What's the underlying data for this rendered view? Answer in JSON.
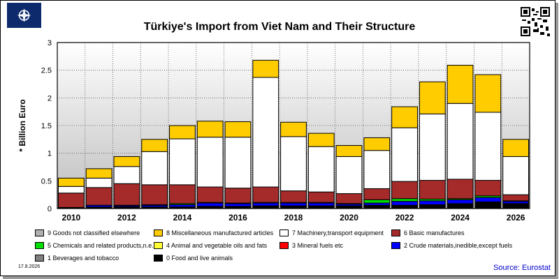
{
  "header": {
    "title": "Türkiye's Import from Viet Nam and Their Structure",
    "logo_icon": "nato-compass-icon",
    "qr_icon": "qr-code-icon"
  },
  "footer": {
    "date": "17.8.2026",
    "source": "Source: Eurostat"
  },
  "colors": {
    "c9": "#b0b0b0",
    "c8": "#ffcc00",
    "c7": "#ffffff",
    "c6": "#a52a2a",
    "c5": "#00dd00",
    "c4": "#ffff33",
    "c3": "#ff0000",
    "c2": "#0000ff",
    "c1": "#808080",
    "c0": "#000000"
  },
  "legend": [
    {
      "label": "9 Goods not classified elsewhere",
      "color": "#b0b0b0"
    },
    {
      "label": "8 Miscellaneous manufactured articles",
      "color": "#ffcc00"
    },
    {
      "label": "7 Machinery,transport equipment",
      "color": "#ffffff"
    },
    {
      "label": "6 Basic manufactures",
      "color": "#a52a2a"
    },
    {
      "label": "5 Chemicals and related products,n.e.s.",
      "color": "#00dd00"
    },
    {
      "label": "4 Animal and vegetable oils and fats",
      "color": "#ffff33"
    },
    {
      "label": "3 Mineral fuels etc",
      "color": "#ff0000"
    },
    {
      "label": "2 Crude materials,inedible,except fuels",
      "color": "#0000ff"
    },
    {
      "label": "1 Beverages and tobacco",
      "color": "#808080"
    },
    {
      "label": "0 Food and live animals",
      "color": "#000000"
    }
  ],
  "chart_data": {
    "type": "bar",
    "stacked": true,
    "ylabel": "* Billion Euro",
    "ylim": [
      0,
      3
    ],
    "yticks": [
      "0",
      "0.5",
      "1",
      "1.5",
      "2",
      "2.5",
      "3"
    ],
    "xtick_labels": [
      "2010",
      "2012",
      "2014",
      "2016",
      "2018",
      "2020",
      "2022",
      "2024",
      "2026"
    ],
    "categories": [
      "2010",
      "2011",
      "2012",
      "2013",
      "2014",
      "2015",
      "2016",
      "2017",
      "2018",
      "2019",
      "2020",
      "2021",
      "2022",
      "2023",
      "2024",
      "2025",
      "2026"
    ],
    "grid": true,
    "series": [
      {
        "name": "0 Food and live animals",
        "color": "#000000",
        "values": [
          0.01,
          0.03,
          0.03,
          0.03,
          0.03,
          0.04,
          0.04,
          0.05,
          0.05,
          0.05,
          0.05,
          0.06,
          0.06,
          0.07,
          0.09,
          0.12,
          0.09
        ]
      },
      {
        "name": "1 Beverages and tobacco",
        "color": "#808080",
        "values": [
          0,
          0,
          0,
          0,
          0,
          0,
          0,
          0,
          0,
          0,
          0,
          0,
          0,
          0,
          0,
          0,
          0
        ]
      },
      {
        "name": "2 Crude materials,inedible,except fuels",
        "color": "#0000ff",
        "values": [
          0.01,
          0.03,
          0.02,
          0.03,
          0.04,
          0.06,
          0.05,
          0.05,
          0.05,
          0.05,
          0.03,
          0.04,
          0.07,
          0.07,
          0.07,
          0.08,
          0.04
        ]
      },
      {
        "name": "3 Mineral fuels etc",
        "color": "#ff0000",
        "values": [
          0,
          0,
          0,
          0,
          0,
          0,
          0,
          0,
          0,
          0,
          0,
          0,
          0,
          0,
          0,
          0,
          0
        ]
      },
      {
        "name": "4 Animal and vegetable oils and fats",
        "color": "#ffff33",
        "values": [
          0,
          0,
          0,
          0,
          0,
          0,
          0,
          0,
          0,
          0,
          0,
          0,
          0,
          0,
          0,
          0,
          0
        ]
      },
      {
        "name": "5 Chemicals and related products,n.e.s.",
        "color": "#00dd00",
        "values": [
          0,
          0,
          0.01,
          0.01,
          0.02,
          0.01,
          0.01,
          0.01,
          0.01,
          0.01,
          0.01,
          0.06,
          0.05,
          0.03,
          0.02,
          0.03,
          0.01
        ]
      },
      {
        "name": "6 Basic manufactures",
        "color": "#a52a2a",
        "values": [
          0.26,
          0.32,
          0.39,
          0.36,
          0.34,
          0.28,
          0.27,
          0.28,
          0.21,
          0.19,
          0.18,
          0.2,
          0.31,
          0.34,
          0.35,
          0.28,
          0.11
        ]
      },
      {
        "name": "7 Machinery,transport equipment",
        "color": "#ffffff",
        "values": [
          0.12,
          0.17,
          0.31,
          0.6,
          0.83,
          0.9,
          0.92,
          1.98,
          0.98,
          0.82,
          0.67,
          0.69,
          0.97,
          1.2,
          1.37,
          1.23,
          0.69
        ]
      },
      {
        "name": "8 Miscellaneous manufactured articles",
        "color": "#ffcc00",
        "values": [
          0.15,
          0.17,
          0.18,
          0.22,
          0.24,
          0.29,
          0.28,
          0.31,
          0.26,
          0.24,
          0.2,
          0.23,
          0.38,
          0.58,
          0.69,
          0.68,
          0.31
        ]
      },
      {
        "name": "9 Goods not classified elsewhere",
        "color": "#b0b0b0",
        "values": [
          0,
          0,
          0,
          0,
          0,
          0,
          0,
          0,
          0,
          0,
          0,
          0,
          0,
          0,
          0,
          0,
          0
        ]
      }
    ]
  }
}
